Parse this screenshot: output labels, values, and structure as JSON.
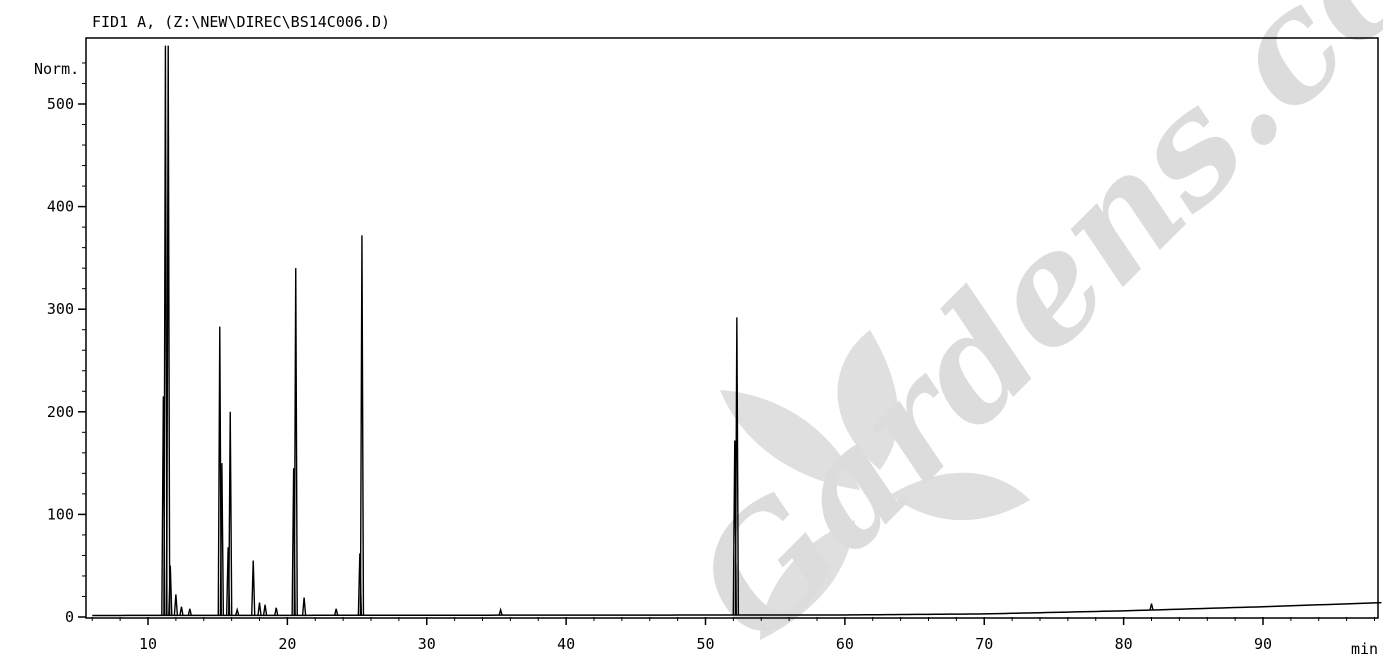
{
  "chart_data": {
    "type": "line",
    "title": "FID1 A, (Z:\\NEW\\DIREC\\BS14C006.D)",
    "ylabel": "Norm.",
    "xlabel": "min",
    "xlim": [
      6,
      98.5
    ],
    "ylim": [
      0,
      555
    ],
    "x_ticks": [
      10,
      20,
      30,
      40,
      50,
      60,
      70,
      80,
      90
    ],
    "y_ticks": [
      0,
      100,
      200,
      300,
      400,
      500
    ],
    "grid": false,
    "colors": {
      "trace": "#000000",
      "frame": "#000000",
      "watermark": "#d6d6d6"
    },
    "series": [
      {
        "peaks": [
          {
            "x": 11.1,
            "y": 215
          },
          {
            "x": 11.25,
            "y": 555
          },
          {
            "x": 11.45,
            "y": 555
          },
          {
            "x": 11.6,
            "y": 50
          },
          {
            "x": 12.0,
            "y": 22
          },
          {
            "x": 12.4,
            "y": 10
          },
          {
            "x": 13.0,
            "y": 8
          },
          {
            "x": 15.15,
            "y": 283
          },
          {
            "x": 15.3,
            "y": 150
          },
          {
            "x": 15.75,
            "y": 68
          },
          {
            "x": 15.9,
            "y": 200
          },
          {
            "x": 16.4,
            "y": 7
          },
          {
            "x": 17.55,
            "y": 55
          },
          {
            "x": 18.0,
            "y": 14
          },
          {
            "x": 18.4,
            "y": 12
          },
          {
            "x": 19.2,
            "y": 9
          },
          {
            "x": 20.45,
            "y": 145
          },
          {
            "x": 20.6,
            "y": 340
          },
          {
            "x": 21.2,
            "y": 19
          },
          {
            "x": 23.5,
            "y": 8
          },
          {
            "x": 25.2,
            "y": 62
          },
          {
            "x": 25.35,
            "y": 372
          },
          {
            "x": 35.3,
            "y": 7
          },
          {
            "x": 52.1,
            "y": 172
          },
          {
            "x": 52.25,
            "y": 292
          },
          {
            "x": 82.0,
            "y": 13
          }
        ],
        "baseline": [
          {
            "x": 6,
            "y": 1.5
          },
          {
            "x": 60,
            "y": 2
          },
          {
            "x": 70,
            "y": 3
          },
          {
            "x": 80,
            "y": 6
          },
          {
            "x": 90,
            "y": 10
          },
          {
            "x": 98.5,
            "y": 14
          }
        ]
      }
    ],
    "watermark": "Gardens.com"
  }
}
